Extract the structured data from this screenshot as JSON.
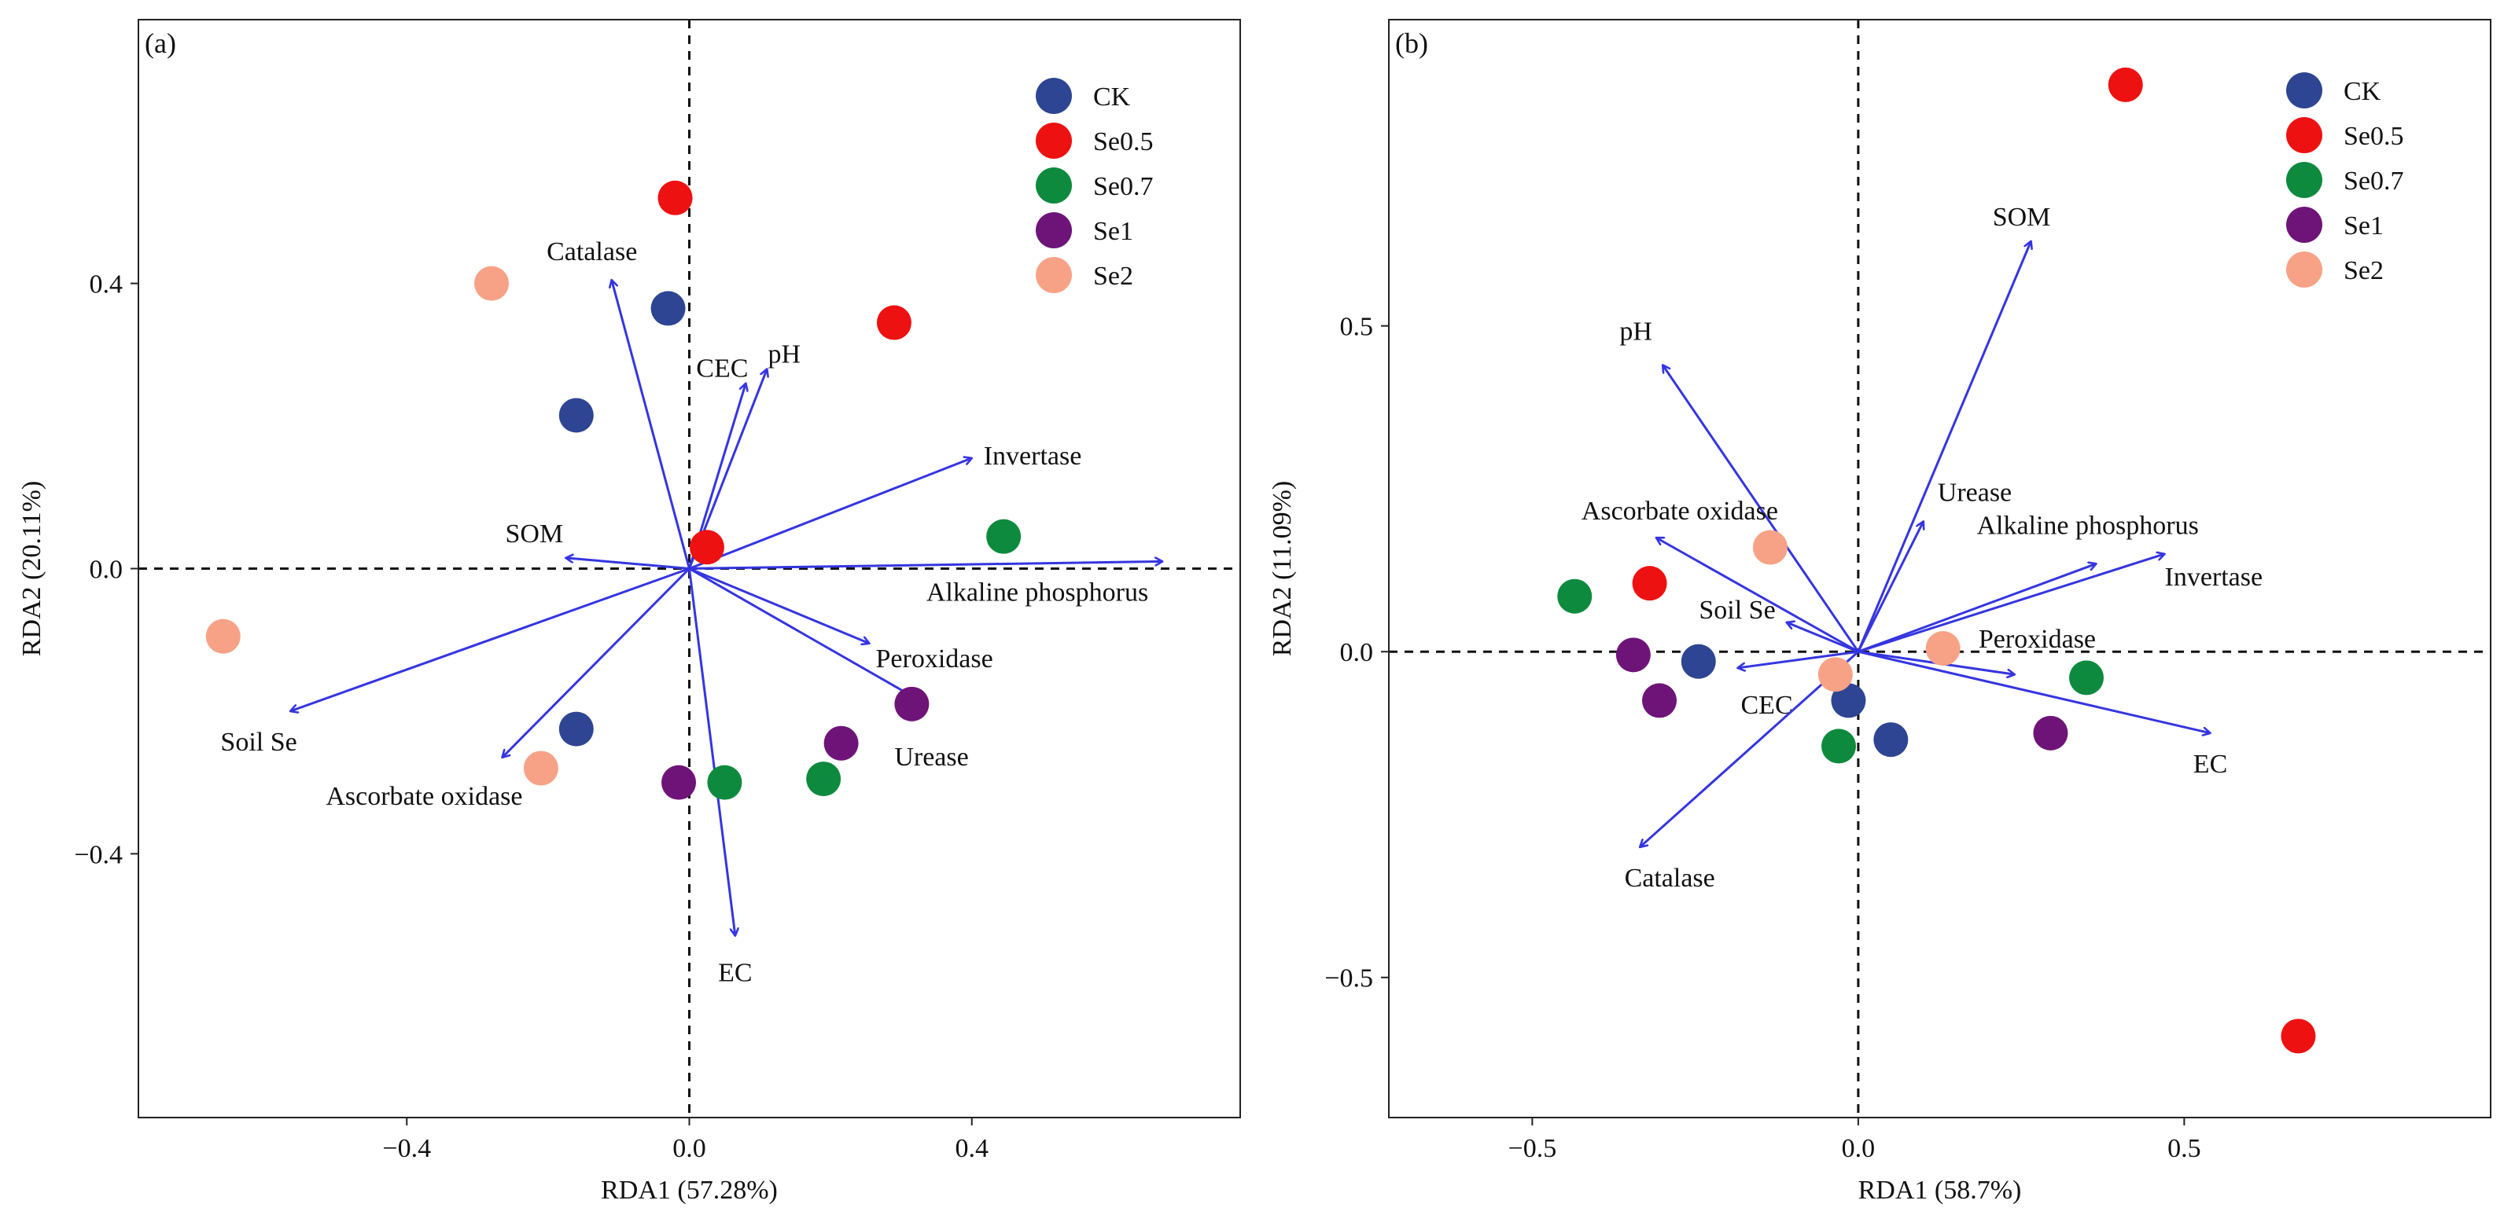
{
  "colors": {
    "arrow": "#3535e0",
    "CK": "#2e4593",
    "Se0.5": "#ee1111",
    "Se0.7": "#0e8a3e",
    "Se1": "#6e1478",
    "Se2": "#f7a286"
  },
  "chart_data": [
    {
      "type": "scatter",
      "panel_label": "(a)",
      "xlabel": "RDA1 (57.28%)",
      "ylabel": "RDA2 (20.11%)",
      "xlim": [
        -0.78,
        0.78
      ],
      "ylim": [
        -0.77,
        0.77
      ],
      "xticks": [
        {
          "v": -0.4,
          "label": "−0.4"
        },
        {
          "v": 0.0,
          "label": "0.0"
        },
        {
          "v": 0.4,
          "label": "0.4"
        }
      ],
      "yticks": [
        {
          "v": 0.4,
          "label": "0.4"
        },
        {
          "v": 0.0,
          "label": "0.0"
        },
        {
          "v": -0.4,
          "label": "−0.4"
        }
      ],
      "legend": [
        "CK",
        "Se0.5",
        "Se0.7",
        "Se1",
        "Se2"
      ],
      "legend_position": "top-right",
      "series": [
        {
          "name": "CK",
          "points": [
            [
              -0.03,
              0.365
            ],
            [
              -0.16,
              0.215
            ],
            [
              -0.16,
              -0.225
            ]
          ]
        },
        {
          "name": "Se0.5",
          "points": [
            [
              -0.02,
              0.52
            ],
            [
              0.29,
              0.345
            ],
            [
              0.025,
              0.03
            ]
          ]
        },
        {
          "name": "Se0.7",
          "points": [
            [
              0.445,
              0.045
            ],
            [
              0.05,
              -0.3
            ],
            [
              0.19,
              -0.295
            ]
          ]
        },
        {
          "name": "Se1",
          "points": [
            [
              0.315,
              -0.19
            ],
            [
              0.215,
              -0.245
            ],
            [
              -0.015,
              -0.3
            ]
          ]
        },
        {
          "name": "Se2",
          "points": [
            [
              -0.28,
              0.4
            ],
            [
              -0.66,
              -0.095
            ],
            [
              -0.21,
              -0.28
            ]
          ]
        }
      ],
      "vectors": [
        {
          "name": "Catalase",
          "x": -0.11,
          "y": 0.405
        },
        {
          "name": "CEC",
          "x": 0.08,
          "y": 0.26
        },
        {
          "name": "pH",
          "x": 0.11,
          "y": 0.28
        },
        {
          "name": "Invertase",
          "x": 0.4,
          "y": 0.155
        },
        {
          "name": "SOM",
          "x": -0.175,
          "y": 0.015
        },
        {
          "name": "Alkaline phosphorus",
          "x": 0.67,
          "y": 0.01
        },
        {
          "name": "Peroxidase",
          "x": 0.255,
          "y": -0.105
        },
        {
          "name": "Urease",
          "x": 0.335,
          "y": -0.19
        },
        {
          "name": "Soil Se",
          "x": -0.565,
          "y": -0.2
        },
        {
          "name": "Ascorbate oxidase",
          "x": -0.265,
          "y": -0.265
        },
        {
          "name": "EC",
          "x": 0.065,
          "y": -0.515
        }
      ]
    },
    {
      "type": "scatter",
      "panel_label": "(b)",
      "xlabel": "RDA1 (58.7%)",
      "ylabel": "RDA2 (11.09%)",
      "xlim": [
        -0.72,
        0.97
      ],
      "ylim": [
        -0.715,
        0.97
      ],
      "xticks": [
        {
          "v": -0.5,
          "label": "−0.5"
        },
        {
          "v": 0.0,
          "label": "0.0"
        },
        {
          "v": 0.5,
          "label": "0.5"
        }
      ],
      "yticks": [
        {
          "v": 0.5,
          "label": "0.5"
        },
        {
          "v": 0.0,
          "label": "0.0"
        },
        {
          "v": -0.5,
          "label": "−0.5"
        }
      ],
      "legend": [
        "CK",
        "Se0.5",
        "Se0.7",
        "Se1",
        "Se2"
      ],
      "legend_position": "top-right",
      "series": [
        {
          "name": "CK",
          "points": [
            [
              -0.245,
              -0.015
            ],
            [
              -0.015,
              -0.075
            ],
            [
              0.05,
              -0.135
            ]
          ]
        },
        {
          "name": "Se0.5",
          "points": [
            [
              0.41,
              0.87
            ],
            [
              -0.32,
              0.105
            ],
            [
              0.675,
              -0.59
            ]
          ]
        },
        {
          "name": "Se0.7",
          "points": [
            [
              -0.435,
              0.085
            ],
            [
              0.35,
              -0.04
            ],
            [
              -0.03,
              -0.145
            ]
          ]
        },
        {
          "name": "Se1",
          "points": [
            [
              -0.345,
              -0.005
            ],
            [
              -0.305,
              -0.075
            ],
            [
              0.295,
              -0.125
            ]
          ]
        },
        {
          "name": "Se2",
          "points": [
            [
              -0.135,
              0.16
            ],
            [
              0.13,
              0.005
            ],
            [
              -0.035,
              -0.035
            ]
          ]
        }
      ],
      "vectors": [
        {
          "name": "SOM",
          "x": 0.265,
          "y": 0.63
        },
        {
          "name": "pH",
          "x": -0.3,
          "y": 0.44
        },
        {
          "name": "Urease",
          "x": 0.1,
          "y": 0.2
        },
        {
          "name": "Alkaline phosphorus",
          "x": 0.365,
          "y": 0.135
        },
        {
          "name": "Invertase",
          "x": 0.47,
          "y": 0.15
        },
        {
          "name": "Ascorbate oxidase",
          "x": -0.31,
          "y": 0.175
        },
        {
          "name": "Soil Se",
          "x": -0.11,
          "y": 0.045
        },
        {
          "name": "Peroxidase",
          "x": 0.24,
          "y": -0.035
        },
        {
          "name": "CEC",
          "x": -0.185,
          "y": -0.025
        },
        {
          "name": "EC",
          "x": 0.54,
          "y": -0.125
        },
        {
          "name": "Catalase",
          "x": -0.335,
          "y": -0.3
        }
      ]
    }
  ]
}
